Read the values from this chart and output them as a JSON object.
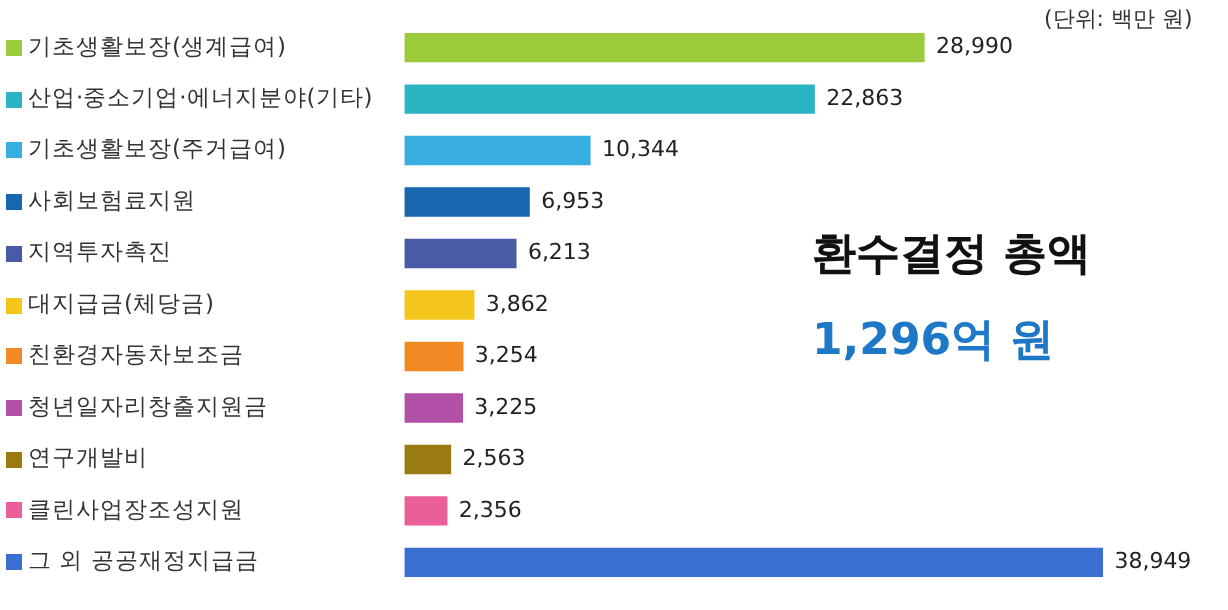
{
  "chart_data": {
    "type": "bar",
    "orientation": "horizontal",
    "value_labels": [
      "28,990",
      "22,863",
      "10,344",
      "6,953",
      "6,213",
      "3,862",
      "3,254",
      "3,225",
      "2,563",
      "2,356",
      "38,949"
    ],
    "categories": [
      "기초생활보장(생계급여)",
      "산업·중소기업·에너지분야(기타)",
      "기초생활보장(주거급여)",
      "사회보험료지원",
      "지역투자촉진",
      "대지급금(체당금)",
      "친환경자동차보조금",
      "청년일자리창출지원금",
      "연구개발비",
      "클린사업장조성지원",
      "그 외 공공재정지급금"
    ],
    "values": [
      28990,
      22863,
      10344,
      6953,
      6213,
      3862,
      3254,
      3225,
      2563,
      2356,
      38949
    ],
    "colors": [
      "#9ccb3b",
      "#2bb5c4",
      "#37ade0",
      "#1667b0",
      "#4b5aa6",
      "#f4c61b",
      "#f18a25",
      "#b24fa6",
      "#9a7b12",
      "#ea5f98",
      "#3b6fd2"
    ],
    "annotations": [
      "(단위: 백만 원)",
      "환수결정 총액",
      "1,296억 원"
    ]
  }
}
